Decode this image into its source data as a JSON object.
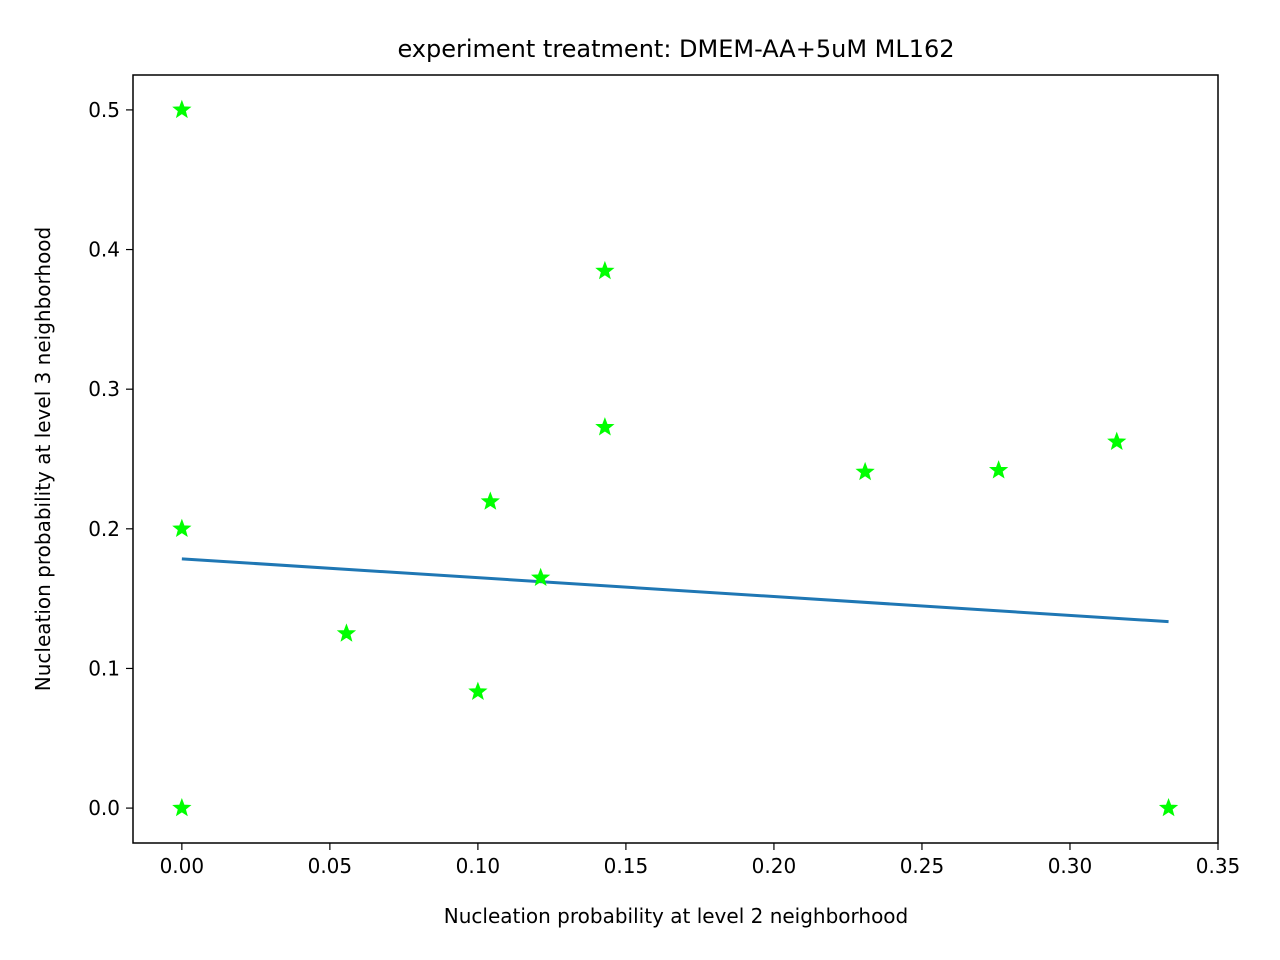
{
  "chart_data": {
    "type": "scatter",
    "title": "experiment treatment: DMEM-AA+5uM ML162",
    "xlabel": "Nucleation probability at level 2 neighborhood",
    "ylabel": "Nucleation probability at level 3 neighborhood",
    "xlim": [
      -0.0165,
      0.35
    ],
    "ylim": [
      -0.025,
      0.525
    ],
    "xticks": [
      0.0,
      0.05,
      0.1,
      0.15,
      0.2,
      0.25,
      0.3,
      0.35
    ],
    "xtick_labels": [
      "0.00",
      "0.05",
      "0.10",
      "0.15",
      "0.20",
      "0.25",
      "0.30",
      "0.35"
    ],
    "yticks": [
      0.0,
      0.1,
      0.2,
      0.3,
      0.4,
      0.5
    ],
    "ytick_labels": [
      "0.0",
      "0.1",
      "0.2",
      "0.3",
      "0.4",
      "0.5"
    ],
    "grid": false,
    "series": [
      {
        "kind": "scatter",
        "marker": "star",
        "color": "#00ff00",
        "x": [
          0.0,
          0.0,
          0.0,
          0.0556,
          0.1,
          0.1042,
          0.1212,
          0.1429,
          0.1429,
          0.2308,
          0.2759,
          0.3158,
          0.3333
        ],
        "y": [
          0.5,
          0.2,
          0.0,
          0.125,
          0.0833,
          0.2195,
          0.1649,
          0.3846,
          0.2727,
          0.2407,
          0.2419,
          0.2623,
          0.0
        ]
      },
      {
        "kind": "line",
        "color": "#1f77b4",
        "x": [
          0.0,
          0.3333
        ],
        "y": [
          0.1785,
          0.1335
        ]
      }
    ]
  }
}
